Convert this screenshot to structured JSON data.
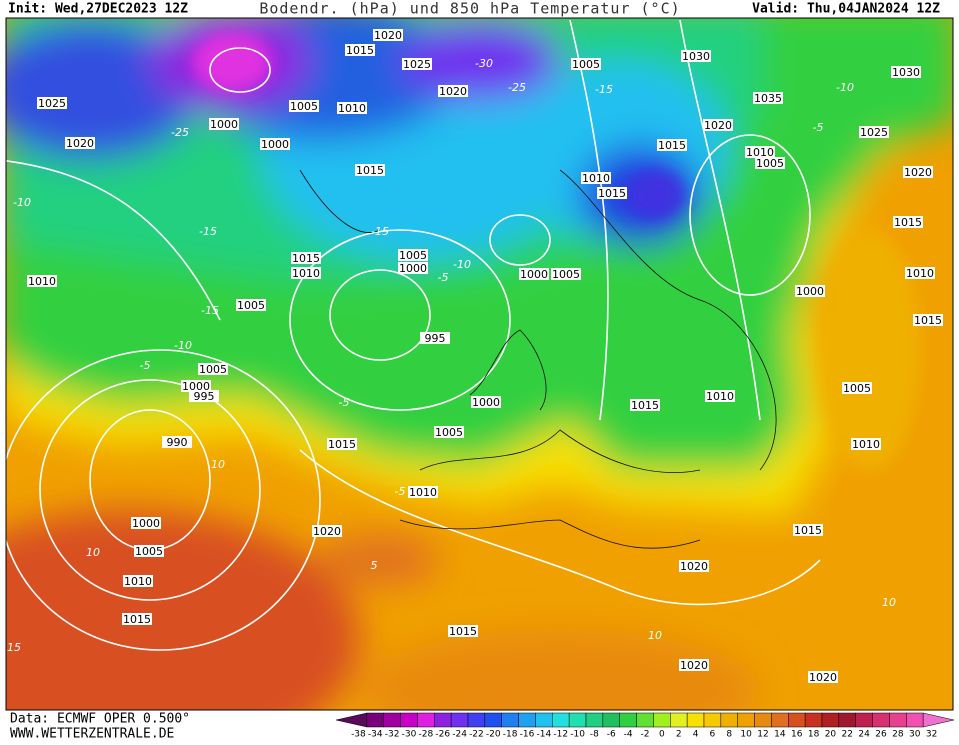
{
  "header": {
    "init": "Init: Wed,27DEC2023 12Z",
    "title": "Bodendr. (hPa) und 850 hPa Temperatur (°C)",
    "valid": "Valid: Thu,04JAN2024 12Z"
  },
  "footer": {
    "data": "Data: ECMWF OPER 0.500°",
    "site": "WWW.WETTERZENTRALE.DE"
  },
  "isobar_labels": [
    1020,
    1015,
    1025,
    1020,
    1025,
    1020,
    1000,
    1005,
    1010,
    1000,
    1015,
    1005,
    1030,
    1030,
    1035,
    1020,
    1025,
    1015,
    1010,
    1005,
    1010,
    1015,
    1020,
    1015,
    1005,
    1000,
    1015,
    1010,
    1000,
    1005,
    1010,
    1010,
    1005,
    1000,
    995,
    1015,
    1005,
    1000,
    995,
    1005,
    1000,
    1015,
    1010,
    1015,
    1005,
    990,
    1010,
    1010,
    1000,
    1020,
    1015,
    1005,
    1020,
    1010,
    1015,
    1015,
    1020,
    1020
  ],
  "isotherm_labels": [
    -30,
    -25,
    -25,
    -15,
    -10,
    -5,
    -15,
    -10,
    -15,
    -10,
    -5,
    -15,
    -10,
    -5,
    -5,
    10,
    -5,
    10,
    15,
    10,
    10,
    5
  ],
  "colorbar": {
    "labels": [
      -38,
      -34,
      -32,
      -30,
      -28,
      -26,
      -24,
      -22,
      -20,
      -18,
      -16,
      -14,
      -12,
      -10,
      -8,
      -6,
      -4,
      -2,
      0,
      2,
      4,
      6,
      8,
      10,
      12,
      14,
      16,
      18,
      20,
      22,
      24,
      26,
      28,
      30,
      32
    ],
    "colors": [
      "#5a0a5a",
      "#7a007a",
      "#a000a0",
      "#c800c8",
      "#e020e0",
      "#9020e0",
      "#7030f0",
      "#4040f0",
      "#2050f0",
      "#2080f0",
      "#20a0f0",
      "#20c0f0",
      "#20e0e0",
      "#20e0b0",
      "#20d080",
      "#20c060",
      "#30d040",
      "#60e030",
      "#a0f020",
      "#e0f020",
      "#f8e000",
      "#f8c800",
      "#f0b000",
      "#f0a000",
      "#e88a10",
      "#e07020",
      "#d85020",
      "#c83020",
      "#b02020",
      "#a01830",
      "#c02050",
      "#d83070",
      "#e84090",
      "#f050b0",
      "#f070d0"
    ]
  }
}
